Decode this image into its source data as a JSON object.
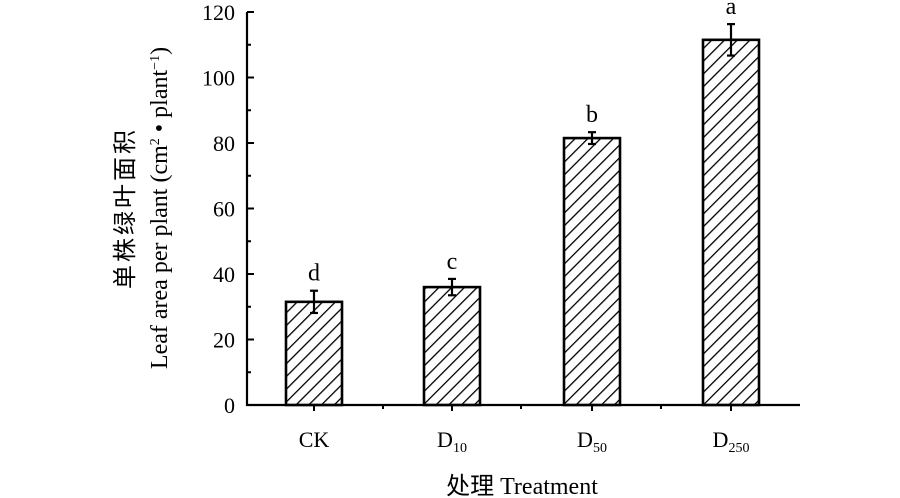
{
  "chart_data": {
    "type": "bar",
    "title": "",
    "categories": [
      {
        "main": "CK",
        "sub": ""
      },
      {
        "main": "D",
        "sub": "10"
      },
      {
        "main": "D",
        "sub": "50"
      },
      {
        "main": "D",
        "sub": "250"
      }
    ],
    "values": [
      31.5,
      36,
      81.5,
      111.5
    ],
    "errors": [
      3.4,
      2.5,
      1.8,
      4.8
    ],
    "significance_letters": [
      "d",
      "c",
      "b",
      "a"
    ],
    "xlabel": "处理 Treatment",
    "ylabel_cn": "单株绿叶面积",
    "ylabel_en_parts": {
      "pre": "Leaf area per plant (cm",
      "sup1": "2",
      "mid": " • plant",
      "sup2": "−1",
      "post": ")"
    },
    "ylim": [
      0,
      120
    ],
    "yticks": [
      0,
      20,
      40,
      60,
      80,
      100,
      120
    ],
    "grid": false,
    "bar_fill": "diagonal-hatch",
    "colors": {
      "bar_edge": "#000000",
      "hatch": "#000000",
      "background": "#ffffff"
    }
  }
}
